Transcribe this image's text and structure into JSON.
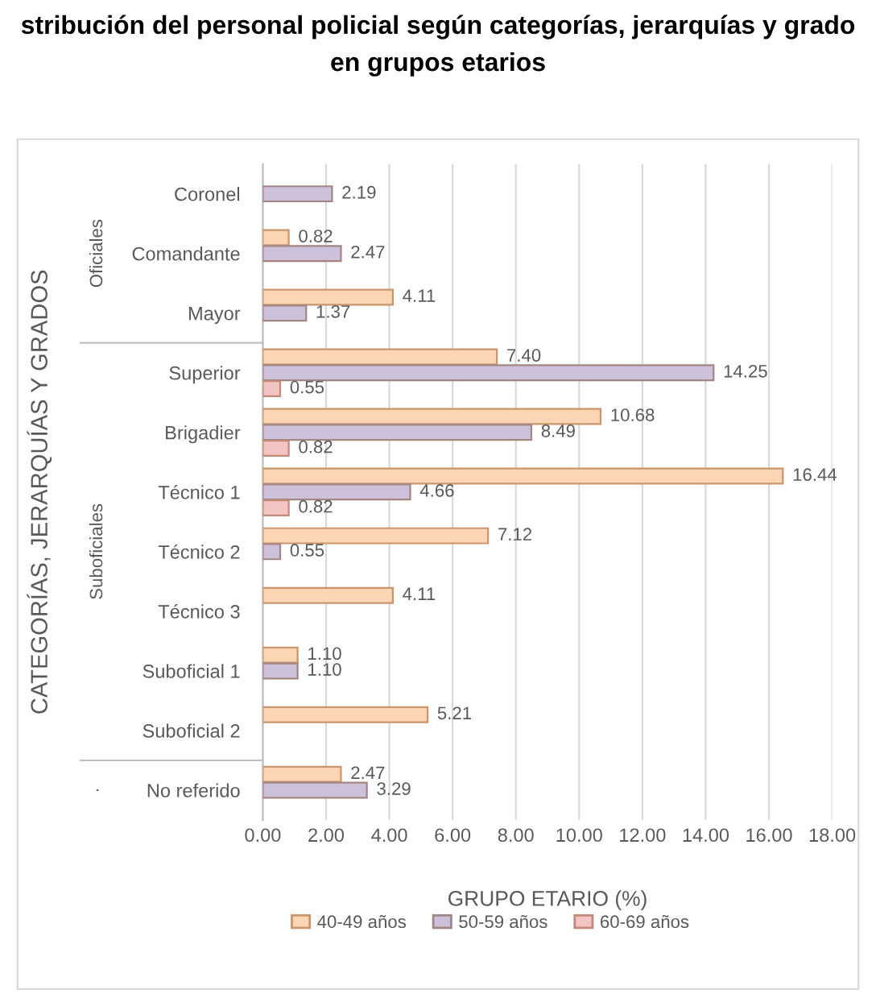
{
  "chart_data": {
    "type": "bar",
    "orientation": "horizontal",
    "title": "stribución del personal policial según categorías, jerarquías y grado\nen grupos etarios",
    "xlabel": "GRUPO ETARIO (%)",
    "ylabel": "CATEGORÍAS, JERARQUÍAS Y GRADOS",
    "categories": [
      "Coronel",
      "Comandante",
      "Mayor",
      "Superior",
      "Brigadier",
      "Técnico 1",
      "Técnico 2",
      "Técnico 3",
      "Suboficial 1",
      "Suboficial 2",
      "No referido"
    ],
    "series": [
      {
        "name": "40-49 años",
        "color": "#fcd5b4",
        "values": [
          null,
          0.82,
          4.11,
          7.4,
          10.68,
          16.44,
          7.12,
          4.11,
          1.1,
          5.21,
          2.47
        ],
        "value_labels": [
          null,
          "0.82",
          "4.11",
          "7.40",
          "10.68",
          "16.44",
          "7.12",
          "4.11",
          "1.10",
          "5.21",
          "2.47"
        ]
      },
      {
        "name": "50-59 años",
        "color": "#ccc0da",
        "values": [
          2.19,
          2.47,
          1.37,
          14.25,
          8.49,
          4.66,
          0.55,
          null,
          1.1,
          null,
          3.29
        ],
        "value_labels": [
          "2.19",
          "2.47",
          "1.37",
          "14.25",
          "8.49",
          "4.66",
          "0.55",
          null,
          "1.10",
          null,
          "3.29"
        ]
      },
      {
        "name": "60-69 años",
        "color": "#f2c4c4",
        "values": [
          null,
          null,
          null,
          0.55,
          0.82,
          0.82,
          null,
          null,
          null,
          null,
          null
        ],
        "value_labels": [
          null,
          null,
          null,
          "0.55",
          "0.82",
          "0.82",
          null,
          null,
          null,
          null,
          null
        ]
      }
    ],
    "annotations": [
      "Oficiales",
      "Suboficiales",
      "·"
    ],
    "xlim": [
      0,
      18
    ],
    "xticks": [
      {
        "value": 0,
        "label": "0.00"
      },
      {
        "value": 2,
        "label": "2.00"
      },
      {
        "value": 4,
        "label": "4.00"
      },
      {
        "value": 6,
        "label": "6.00"
      },
      {
        "value": 8,
        "label": "8.00"
      },
      {
        "value": 10,
        "label": "10.00"
      },
      {
        "value": 12,
        "label": "12.00"
      },
      {
        "value": 14,
        "label": "14.00"
      },
      {
        "value": 16,
        "label": "16.00"
      },
      {
        "value": 18,
        "label": "18.00"
      }
    ],
    "grid": "x",
    "legend": "bottom"
  }
}
